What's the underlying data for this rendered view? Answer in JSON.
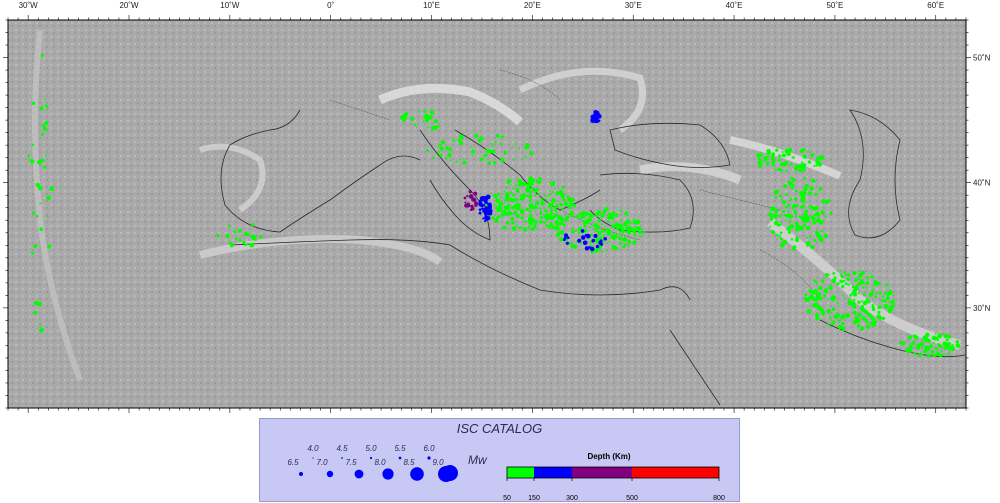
{
  "map": {
    "lon_labels": [
      {
        "value": -30,
        "text": "30˚W"
      },
      {
        "value": -20,
        "text": "20˚W"
      },
      {
        "value": -10,
        "text": "10˚W"
      },
      {
        "value": 0,
        "text": "0˚"
      },
      {
        "value": 10,
        "text": "10˚E"
      },
      {
        "value": 20,
        "text": "20˚E"
      },
      {
        "value": 30,
        "text": "30˚E"
      },
      {
        "value": 40,
        "text": "40˚E"
      },
      {
        "value": 50,
        "text": "50˚E"
      },
      {
        "value": 60,
        "text": "60˚E"
      }
    ],
    "lat_labels": [
      {
        "value": 50,
        "text": "50˚N"
      },
      {
        "value": 40,
        "text": "40˚N"
      },
      {
        "value": 30,
        "text": "30˚N"
      }
    ],
    "extent": {
      "lon_min": -32,
      "lon_max": 63,
      "lat_min": 22,
      "lat_max": 53
    }
  },
  "legend": {
    "title": "ISC CATALOG",
    "magnitudes_row1": [
      "4.0",
      "4.5",
      "5.0",
      "5.5",
      "6.0"
    ],
    "magnitudes_row2": [
      "6.5",
      "7.0",
      "7.5",
      "8.0",
      "8.5",
      "9.0"
    ],
    "magnitude_unit": "Mw",
    "depth_title": "Depth (Km)",
    "depth_ticks": [
      "50",
      "150",
      "300",
      "500",
      "800"
    ],
    "depth_colors": [
      "#00ff00",
      "#0000ff",
      "#800080",
      "#ff0000"
    ],
    "symbol_color": "#0000ff"
  }
}
